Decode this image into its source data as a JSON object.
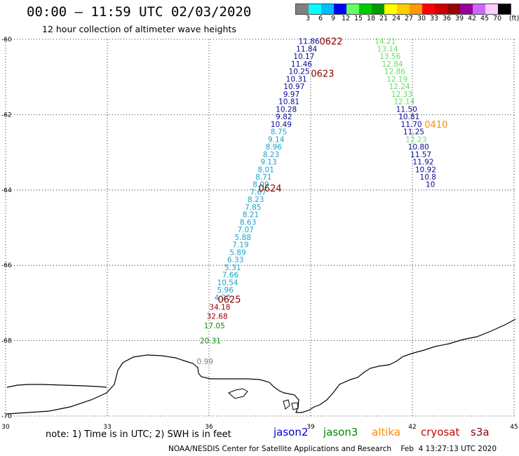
{
  "header": {
    "title": "00:00 – 11:59 UTC 02/03/2020",
    "subtitle": "12 hour collection of altimeter wave heights"
  },
  "colorbar": {
    "colors": [
      "#808080",
      "#00ffff",
      "#00bfff",
      "#0000ff",
      "#66ff66",
      "#00cc00",
      "#009900",
      "#ffff00",
      "#ffcc00",
      "#ff9900",
      "#ff0000",
      "#cc0000",
      "#990000",
      "#990099",
      "#cc66ff",
      "#ffccff",
      "#000000"
    ],
    "labels": [
      "3",
      "6",
      "9",
      "12",
      "15",
      "18",
      "21",
      "24",
      "27",
      "30",
      "33",
      "36",
      "39",
      "42",
      "45",
      "70"
    ],
    "unit": "(ft)"
  },
  "map": {
    "lon_ticks": [
      "30",
      "33",
      "36",
      "39",
      "42",
      "45"
    ],
    "lat_ticks": [
      "-60",
      "-62",
      "-64",
      "-66",
      "-68",
      "-70"
    ],
    "tracks": [
      {
        "name": "jason2-0622-0623",
        "color": "#0a0a96",
        "points": [
          {
            "lat": -60.05,
            "lon": 38.95,
            "v": "11.86"
          },
          {
            "lat": -60.25,
            "lon": 38.88,
            "v": "11.84"
          },
          {
            "lat": -60.45,
            "lon": 38.8,
            "v": "10.17"
          },
          {
            "lat": -60.65,
            "lon": 38.73,
            "v": "11.46"
          },
          {
            "lat": -60.85,
            "lon": 38.66,
            "v": "10.25"
          },
          {
            "lat": -61.05,
            "lon": 38.58,
            "v": "10.31"
          },
          {
            "lat": -61.25,
            "lon": 38.51,
            "v": "10.97"
          },
          {
            "lat": -61.45,
            "lon": 38.43,
            "v": "9.97"
          },
          {
            "lat": -61.65,
            "lon": 38.36,
            "v": "10.81"
          },
          {
            "lat": -61.85,
            "lon": 38.28,
            "v": "10.28"
          },
          {
            "lat": -62.05,
            "lon": 38.21,
            "v": "9.82"
          },
          {
            "lat": -62.25,
            "lon": 38.13,
            "v": "10.49"
          }
        ]
      },
      {
        "name": "jason2-0624",
        "color": "#1aa3c8",
        "points": [
          {
            "lat": -62.45,
            "lon": 38.06,
            "v": "8.75"
          },
          {
            "lat": -62.65,
            "lon": 37.98,
            "v": "9.14"
          },
          {
            "lat": -62.85,
            "lon": 37.91,
            "v": "8.96"
          },
          {
            "lat": -63.05,
            "lon": 37.83,
            "v": "8.23"
          },
          {
            "lat": -63.25,
            "lon": 37.76,
            "v": "9.13"
          },
          {
            "lat": -63.45,
            "lon": 37.68,
            "v": "8.01"
          },
          {
            "lat": -63.65,
            "lon": 37.61,
            "v": "8.71"
          },
          {
            "lat": -63.85,
            "lon": 37.53,
            "v": "8.09"
          },
          {
            "lat": -64.05,
            "lon": 37.45,
            "v": "7.67"
          },
          {
            "lat": -64.25,
            "lon": 37.38,
            "v": "8.23"
          },
          {
            "lat": -64.45,
            "lon": 37.3,
            "v": "7.85"
          },
          {
            "lat": -64.65,
            "lon": 37.23,
            "v": "8.21"
          },
          {
            "lat": -64.85,
            "lon": 37.15,
            "v": "8.63"
          },
          {
            "lat": -65.05,
            "lon": 37.08,
            "v": "7.07"
          },
          {
            "lat": -65.25,
            "lon": 37.0,
            "v": "5.88"
          },
          {
            "lat": -65.45,
            "lon": 36.93,
            "v": "7.19"
          },
          {
            "lat": -65.65,
            "lon": 36.85,
            "v": "5.89"
          },
          {
            "lat": -65.85,
            "lon": 36.78,
            "v": "6.33"
          },
          {
            "lat": -66.05,
            "lon": 36.7,
            "v": "5.31"
          },
          {
            "lat": -66.25,
            "lon": 36.63,
            "v": "7.66"
          },
          {
            "lat": -66.45,
            "lon": 36.55,
            "v": "10.54"
          },
          {
            "lat": -66.65,
            "lon": 36.48,
            "v": "5.96"
          },
          {
            "lat": -66.85,
            "lon": 36.4,
            "v": "4.20"
          }
        ]
      },
      {
        "name": "jason2-0625",
        "color": "#a00000",
        "points": [
          {
            "lat": -67.1,
            "lon": 36.32,
            "v": "34.18"
          },
          {
            "lat": -67.35,
            "lon": 36.24,
            "v": "32.68"
          }
        ]
      },
      {
        "name": "jason3-0625",
        "color": "#0a8c0a",
        "points": [
          {
            "lat": -67.6,
            "lon": 36.16,
            "v": "17.05"
          },
          {
            "lat": -68.0,
            "lon": 36.04,
            "v": "20.31"
          }
        ]
      },
      {
        "name": "grey-0625",
        "color": "#808080",
        "points": [
          {
            "lat": -68.55,
            "lon": 35.88,
            "v": "0.99"
          }
        ]
      },
      {
        "name": "jason3-0410",
        "color": "#66dd66",
        "points": [
          {
            "lat": -60.05,
            "lon": 41.2,
            "v": "14.21"
          },
          {
            "lat": -60.25,
            "lon": 41.27,
            "v": "13.14"
          },
          {
            "lat": -60.45,
            "lon": 41.34,
            "v": "13.56"
          },
          {
            "lat": -60.65,
            "lon": 41.41,
            "v": "12.84"
          },
          {
            "lat": -60.85,
            "lon": 41.48,
            "v": "12.86"
          },
          {
            "lat": -61.05,
            "lon": 41.55,
            "v": "12.19"
          },
          {
            "lat": -61.25,
            "lon": 41.62,
            "v": "12.24"
          },
          {
            "lat": -61.45,
            "lon": 41.69,
            "v": "12.33"
          },
          {
            "lat": -61.65,
            "lon": 41.76,
            "v": "12.14"
          }
        ]
      },
      {
        "name": "jason2-0410",
        "color": "#0a0a96",
        "points": [
          {
            "lat": -61.85,
            "lon": 41.83,
            "v": "11.50"
          },
          {
            "lat": -62.05,
            "lon": 41.9,
            "v": "10.81"
          },
          {
            "lat": -62.25,
            "lon": 41.97,
            "v": "11.70"
          },
          {
            "lat": -62.45,
            "lon": 42.04,
            "v": "11.25"
          }
        ]
      },
      {
        "name": "jason3-0410b",
        "color": "#66dd66",
        "points": [
          {
            "lat": -62.65,
            "lon": 42.11,
            "v": "12.23"
          }
        ]
      },
      {
        "name": "jason2-0410b",
        "color": "#0a0a96",
        "points": [
          {
            "lat": -62.85,
            "lon": 42.18,
            "v": "10.80"
          },
          {
            "lat": -63.05,
            "lon": 42.25,
            "v": "11.57"
          },
          {
            "lat": -63.25,
            "lon": 42.32,
            "v": "11.92"
          },
          {
            "lat": -63.45,
            "lon": 42.39,
            "v": "10.92"
          },
          {
            "lat": -63.65,
            "lon": 42.46,
            "v": "10.8"
          },
          {
            "lat": -63.85,
            "lon": 42.53,
            "v": "10"
          }
        ]
      }
    ],
    "time_labels": [
      {
        "text": "0622",
        "color": "#8b0000",
        "lat": -60.05,
        "lon": 39.6
      },
      {
        "text": "0623",
        "color": "#8b0000",
        "lat": -60.9,
        "lon": 39.35
      },
      {
        "text": "0624",
        "color": "#8b0000",
        "lat": -63.95,
        "lon": 37.8
      },
      {
        "text": "0625",
        "color": "#8b0000",
        "lat": -66.9,
        "lon": 36.6
      },
      {
        "text": "0410",
        "color": "#ff8c00",
        "lat": -62.25,
        "lon": 42.7
      }
    ]
  },
  "footer": {
    "note": "note: 1) Time is in UTC; 2) SWH is in feet",
    "satellites": [
      {
        "name": "jason2",
        "color": "#0000cc"
      },
      {
        "name": "jason3",
        "color": "#008800"
      },
      {
        "name": "altika",
        "color": "#ff8800"
      },
      {
        "name": "cryosat",
        "color": "#cc0000"
      },
      {
        "name": "s3a",
        "color": "#880000"
      }
    ],
    "credit": "NOAA/NESDIS Center for Satellite Applications and Research    Feb  4 13:27:13 UTC 2020"
  }
}
